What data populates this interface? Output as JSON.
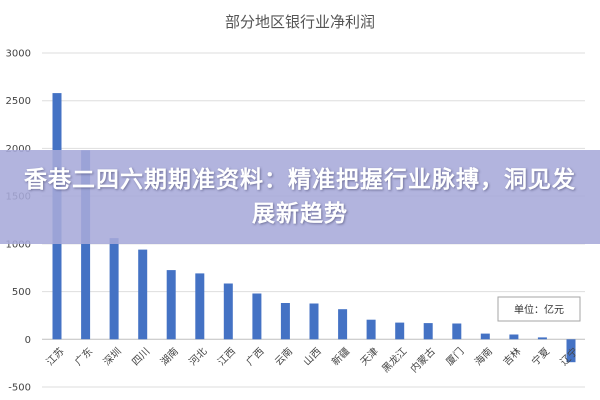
{
  "overlay": {
    "headline": "香巷二四六期期准资料：精准把握行业脉搏，洞见发展新趋势"
  },
  "colors": {
    "bar": "#4472c4",
    "banner": "#a7aada"
  },
  "chart_data": {
    "type": "bar",
    "title": "部分地区银行业净利润",
    "unit_label": "单位：亿元",
    "categories": [
      "江苏",
      "广东",
      "深圳",
      "四川",
      "湖南",
      "河北",
      "江西",
      "广西",
      "云南",
      "山西",
      "新疆",
      "天津",
      "黑龙江",
      "内蒙古",
      "厦门",
      "海南",
      "吉林",
      "宁夏",
      "辽宁"
    ],
    "values": [
      2580,
      1980,
      1060,
      940,
      725,
      690,
      585,
      480,
      380,
      375,
      315,
      205,
      175,
      170,
      165,
      60,
      50,
      20,
      -240
    ],
    "ylim": [
      -500,
      3000
    ],
    "yticks": [
      -500,
      0,
      500,
      1000,
      1500,
      2000,
      2500,
      3000
    ],
    "xlabel": "",
    "ylabel": "",
    "grid": true
  }
}
